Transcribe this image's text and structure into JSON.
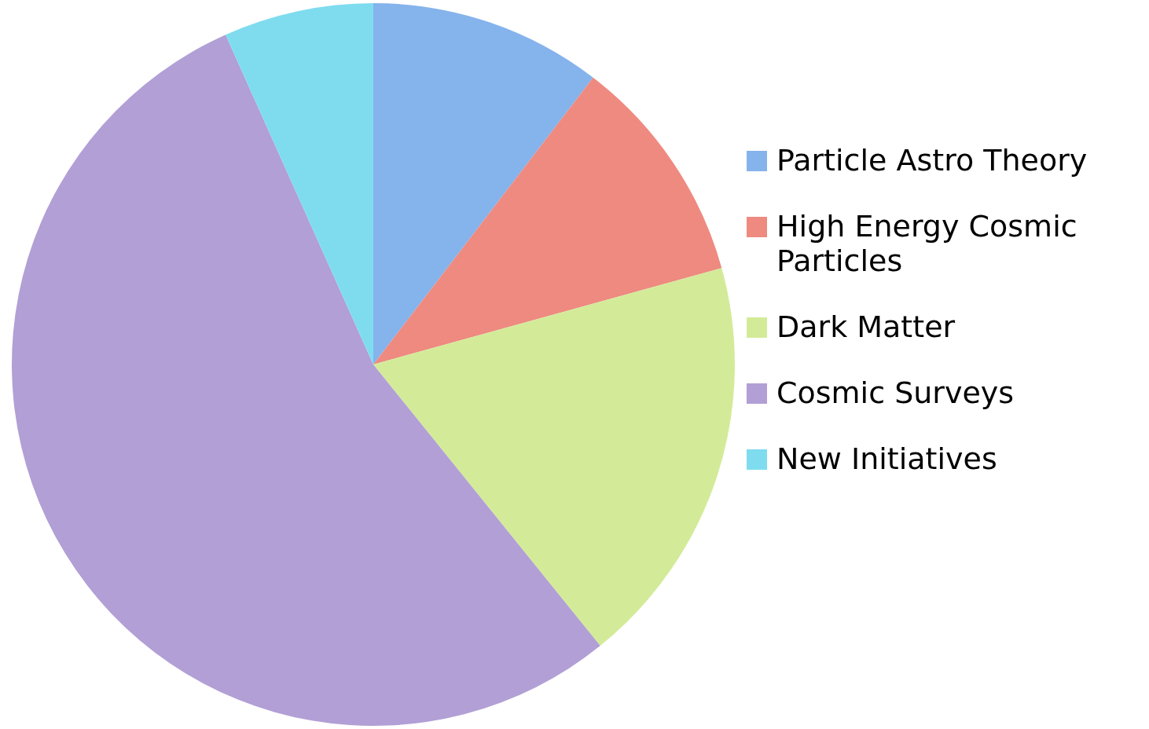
{
  "chart_data": {
    "type": "pie",
    "categories": [
      "Particle Astro Theory",
      "High Energy Cosmic Particles",
      "Dark Matter",
      "Cosmic Surveys",
      "New Initiatives"
    ],
    "values": [
      10.4,
      10.3,
      18.5,
      54.1,
      6.7
    ],
    "colors": [
      "#85b3ec",
      "#ee8a80",
      "#d3eb99",
      "#b19fd5",
      "#7fdcef"
    ],
    "legend": "right"
  }
}
